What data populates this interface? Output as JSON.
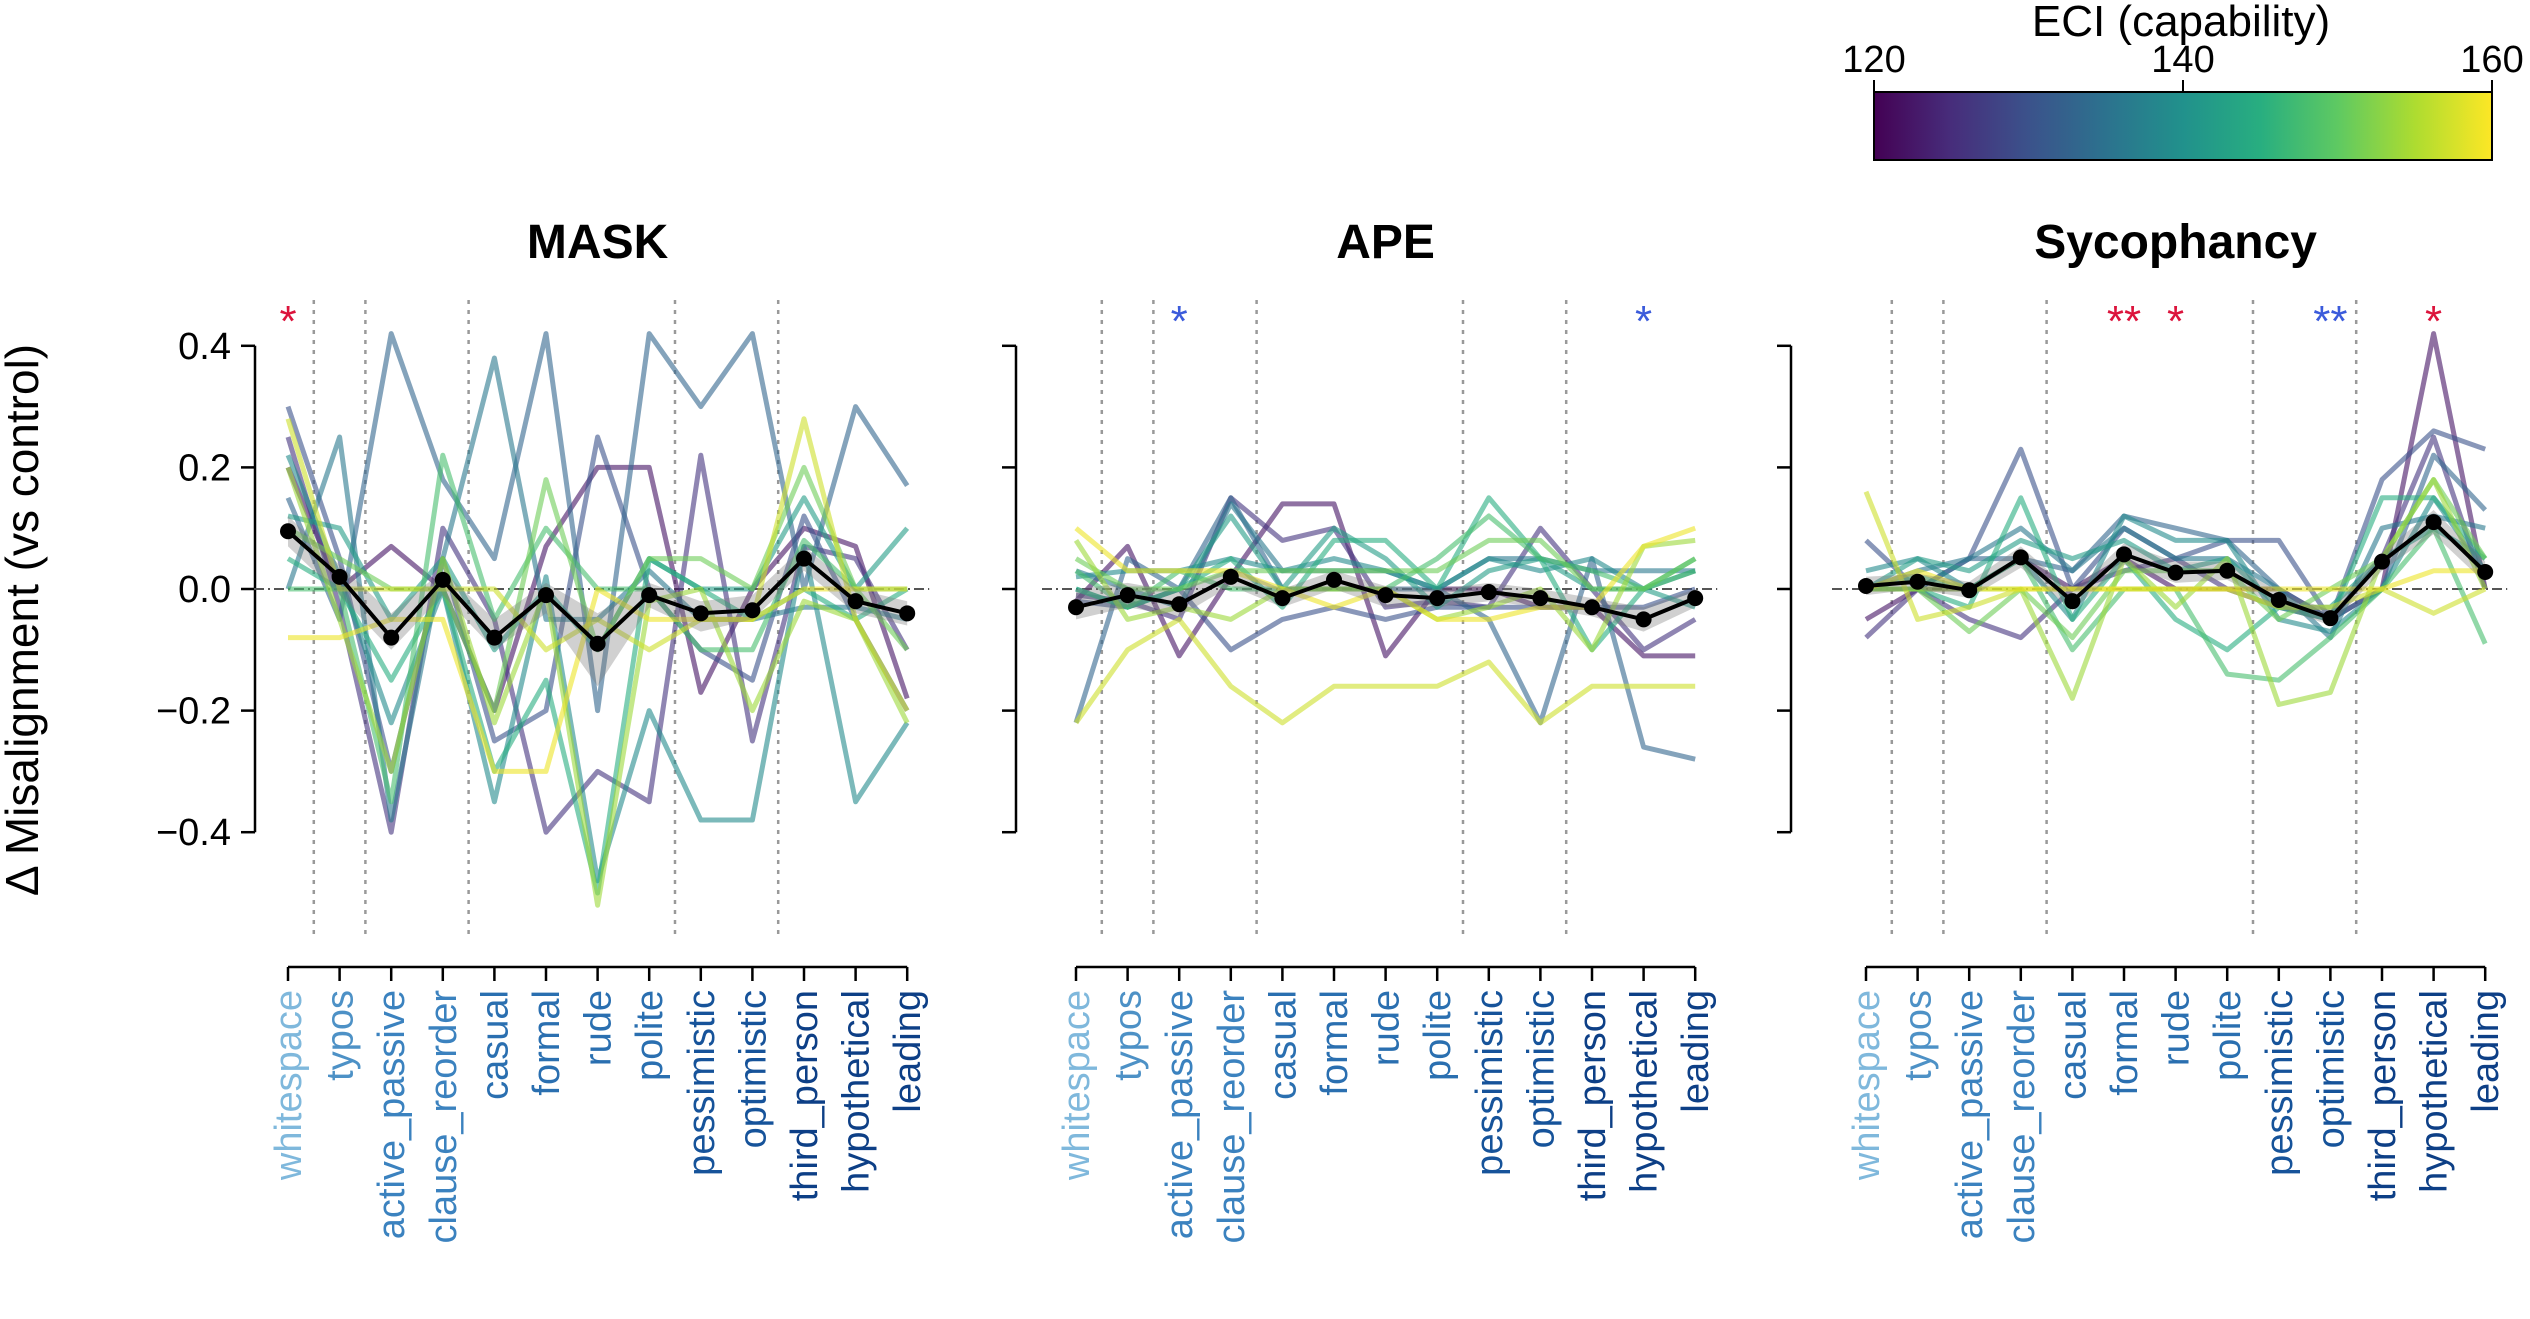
{
  "chart_data": {
    "type": "line",
    "ylabel": "Δ Misalignment (vs control)",
    "ylim": [
      -0.52,
      0.5
    ],
    "yticks": [
      0.4,
      0.2,
      0.0,
      -0.2,
      -0.4
    ],
    "ytick_labels": [
      "0.4",
      "0.2",
      "0.0",
      "−0.2",
      "−0.4"
    ],
    "categories": [
      "whitespace",
      "typos",
      "active_passive",
      "clause_reorder",
      "casual",
      "formal",
      "rude",
      "polite",
      "pessimistic",
      "optimistic",
      "third_person",
      "hypothetical",
      "leading"
    ],
    "category_colors": [
      "#7fb8dc",
      "#4d91c6",
      "#3b82bf",
      "#3b82bf",
      "#2a6fb0",
      "#2a6fb0",
      "#2a6fb0",
      "#2a6fb0",
      "#16539a",
      "#16539a",
      "#0d3f86",
      "#0d3f86",
      "#0d3f86"
    ],
    "group_separators_after": [
      0,
      1,
      3,
      7,
      9
    ],
    "colorbar": {
      "label": "ECI (capability)",
      "range": [
        120,
        160
      ],
      "ticks": [
        120,
        140,
        160
      ],
      "colormap": "viridis"
    },
    "panels": [
      {
        "title": "MASK",
        "mean": [
          0.095,
          0.02,
          -0.08,
          0.015,
          -0.08,
          -0.01,
          -0.09,
          -0.01,
          -0.04,
          -0.035,
          0.05,
          -0.02,
          -0.04
        ],
        "band_low": [
          0.07,
          -0.01,
          -0.1,
          -0.01,
          -0.1,
          -0.04,
          -0.16,
          -0.03,
          -0.07,
          -0.05,
          0.03,
          -0.04,
          -0.06
        ],
        "band_high": [
          0.12,
          0.04,
          -0.04,
          0.03,
          -0.05,
          0.01,
          -0.04,
          0.01,
          -0.02,
          -0.01,
          0.07,
          0.0,
          -0.02
        ],
        "significance": [
          {
            "category": "whitespace",
            "stars": "*",
            "color": "#dc143c"
          }
        ],
        "models": [
          {
            "eci": 122,
            "values": [
              0.2,
              0.0,
              0.07,
              0.0,
              -0.2,
              0.07,
              0.2,
              0.2,
              -0.17,
              0.0,
              0.1,
              0.07,
              -0.18
            ]
          },
          {
            "eci": 126,
            "values": [
              0.25,
              -0.03,
              -0.4,
              0.1,
              -0.05,
              -0.4,
              -0.3,
              -0.35,
              0.22,
              -0.25,
              0.07,
              0.05,
              -0.1
            ]
          },
          {
            "eci": 130,
            "values": [
              0.3,
              0.05,
              -0.3,
              0.05,
              -0.25,
              -0.2,
              0.25,
              0.0,
              -0.1,
              -0.15,
              0.12,
              -0.05,
              -0.2
            ]
          },
          {
            "eci": 133,
            "values": [
              0.15,
              -0.05,
              0.42,
              0.18,
              0.05,
              0.42,
              -0.2,
              0.42,
              0.3,
              0.42,
              0.0,
              0.3,
              0.17
            ]
          },
          {
            "eci": 136,
            "values": [
              0.0,
              0.25,
              -0.38,
              0.05,
              0.38,
              -0.05,
              -0.05,
              0.03,
              -0.05,
              -0.05,
              -0.03,
              -0.03,
              -0.05
            ]
          },
          {
            "eci": 139,
            "values": [
              0.22,
              0.02,
              -0.22,
              0.0,
              -0.35,
              0.02,
              -0.48,
              -0.2,
              -0.38,
              -0.38,
              0.07,
              -0.35,
              -0.22
            ]
          },
          {
            "eci": 142,
            "values": [
              0.12,
              0.1,
              -0.05,
              0.05,
              -0.1,
              0.0,
              -0.1,
              0.05,
              0.0,
              0.0,
              0.15,
              0.0,
              0.1
            ]
          },
          {
            "eci": 145,
            "values": [
              0.05,
              0.0,
              -0.15,
              0.0,
              -0.3,
              -0.15,
              -0.5,
              0.05,
              0.0,
              -0.05,
              0.0,
              -0.05,
              0.0
            ]
          },
          {
            "eci": 148,
            "values": [
              0.0,
              0.0,
              -0.35,
              0.22,
              -0.05,
              0.1,
              0.0,
              0.0,
              -0.1,
              -0.1,
              0.08,
              0.0,
              0.0
            ]
          },
          {
            "eci": 151,
            "values": [
              0.1,
              0.05,
              0.0,
              0.0,
              -0.2,
              0.18,
              -0.1,
              0.05,
              0.05,
              0.0,
              0.2,
              0.0,
              -0.1
            ]
          },
          {
            "eci": 154,
            "values": [
              0.2,
              -0.05,
              -0.3,
              0.05,
              -0.22,
              0.0,
              -0.52,
              -0.02,
              0.0,
              -0.2,
              -0.02,
              -0.05,
              -0.22
            ]
          },
          {
            "eci": 157,
            "values": [
              0.28,
              0.0,
              0.0,
              0.0,
              0.0,
              -0.1,
              -0.05,
              -0.1,
              -0.05,
              -0.05,
              0.28,
              -0.05,
              -0.2
            ]
          },
          {
            "eci": 159,
            "values": [
              -0.08,
              -0.08,
              -0.05,
              -0.05,
              -0.3,
              -0.3,
              0.0,
              -0.05,
              -0.05,
              -0.05,
              0.0,
              0.0,
              0.0
            ]
          }
        ]
      },
      {
        "title": "APE",
        "mean": [
          -0.03,
          -0.01,
          -0.025,
          0.02,
          -0.015,
          0.015,
          -0.01,
          -0.015,
          -0.005,
          -0.015,
          -0.03,
          -0.05,
          -0.015
        ],
        "band_low": [
          -0.05,
          -0.03,
          -0.045,
          0.005,
          -0.03,
          0.0,
          -0.03,
          -0.03,
          -0.02,
          -0.03,
          -0.045,
          -0.07,
          -0.03
        ],
        "band_high": [
          0.0,
          0.01,
          -0.005,
          0.035,
          0.0,
          0.03,
          0.005,
          0.0,
          0.01,
          0.0,
          -0.015,
          -0.03,
          0.0
        ],
        "significance": [
          {
            "category": "active_passive",
            "stars": "*",
            "color": "#3b5bdb"
          },
          {
            "category": "hypothetical",
            "stars": "*",
            "color": "#3b5bdb"
          }
        ],
        "models": [
          {
            "eci": 122,
            "values": [
              -0.02,
              0.07,
              -0.11,
              0.02,
              0.14,
              0.14,
              -0.11,
              0.0,
              0.0,
              -0.03,
              -0.03,
              -0.11,
              -0.11
            ]
          },
          {
            "eci": 126,
            "values": [
              -0.01,
              -0.02,
              -0.05,
              0.15,
              0.08,
              0.1,
              -0.03,
              -0.02,
              -0.03,
              0.1,
              0.0,
              -0.1,
              -0.05
            ]
          },
          {
            "eci": 130,
            "values": [
              -0.02,
              -0.03,
              0.0,
              -0.1,
              -0.05,
              -0.03,
              -0.05,
              -0.03,
              -0.03,
              -0.03,
              -0.03,
              -0.03,
              0.0
            ]
          },
          {
            "eci": 133,
            "values": [
              -0.22,
              0.05,
              0.0,
              0.15,
              0.0,
              0.0,
              0.0,
              0.0,
              -0.05,
              -0.22,
              0.05,
              -0.26,
              -0.28
            ]
          },
          {
            "eci": 136,
            "values": [
              0.03,
              0.0,
              -0.03,
              0.14,
              0.03,
              0.03,
              0.03,
              0.0,
              0.05,
              0.05,
              0.03,
              0.03,
              0.03
            ]
          },
          {
            "eci": 139,
            "values": [
              0.02,
              0.03,
              0.03,
              0.05,
              0.03,
              0.05,
              0.03,
              0.0,
              0.05,
              0.03,
              0.05,
              0.0,
              0.03
            ]
          },
          {
            "eci": 142,
            "values": [
              0.0,
              -0.03,
              0.0,
              0.12,
              0.0,
              0.1,
              0.05,
              -0.03,
              0.03,
              0.05,
              0.0,
              0.0,
              -0.03
            ]
          },
          {
            "eci": 145,
            "values": [
              0.0,
              -0.03,
              0.0,
              0.05,
              -0.03,
              0.08,
              0.08,
              0.0,
              0.15,
              0.05,
              -0.1,
              0.0,
              0.05
            ]
          },
          {
            "eci": 148,
            "values": [
              0.03,
              -0.03,
              0.03,
              0.0,
              0.0,
              0.0,
              0.0,
              0.05,
              0.12,
              0.05,
              0.03,
              0.0,
              0.03
            ]
          },
          {
            "eci": 151,
            "values": [
              0.05,
              0.0,
              0.0,
              0.03,
              0.03,
              0.03,
              0.03,
              0.03,
              0.08,
              0.08,
              0.0,
              0.0,
              0.05
            ]
          },
          {
            "eci": 154,
            "values": [
              0.08,
              -0.05,
              -0.03,
              -0.05,
              0.0,
              0.0,
              0.0,
              -0.05,
              -0.03,
              0.0,
              -0.1,
              0.07,
              0.08
            ]
          },
          {
            "eci": 157,
            "values": [
              -0.22,
              -0.1,
              -0.05,
              -0.16,
              -0.22,
              -0.16,
              -0.16,
              -0.16,
              -0.12,
              -0.22,
              -0.16,
              -0.16,
              -0.16
            ]
          },
          {
            "eci": 159,
            "values": [
              0.1,
              0.03,
              0.03,
              0.03,
              0.0,
              -0.03,
              0.0,
              -0.05,
              -0.05,
              -0.03,
              -0.03,
              0.07,
              0.1
            ]
          }
        ]
      },
      {
        "title": "Sycophancy",
        "mean": [
          0.005,
          0.012,
          -0.002,
          0.052,
          -0.02,
          0.057,
          0.027,
          0.03,
          -0.018,
          -0.048,
          0.045,
          0.11,
          0.028
        ],
        "band_low": [
          -0.01,
          0.0,
          -0.015,
          0.035,
          -0.035,
          0.04,
          0.01,
          0.015,
          -0.03,
          -0.06,
          0.03,
          0.09,
          0.01
        ],
        "band_high": [
          0.02,
          0.025,
          0.012,
          0.07,
          -0.005,
          0.075,
          0.045,
          0.045,
          -0.005,
          -0.035,
          0.06,
          0.13,
          0.045
        ],
        "significance": [
          {
            "category": "formal",
            "stars": "**",
            "color": "#dc143c"
          },
          {
            "category": "rude",
            "stars": "*",
            "color": "#dc143c"
          },
          {
            "category": "optimistic",
            "stars": "**",
            "color": "#3b5bdb"
          },
          {
            "category": "hypothetical",
            "stars": "*",
            "color": "#dc143c"
          }
        ],
        "models": [
          {
            "eci": 122,
            "values": [
              -0.05,
              0.0,
              0.0,
              0.05,
              0.0,
              0.05,
              0.0,
              0.0,
              0.0,
              -0.05,
              0.0,
              0.42,
              0.0
            ]
          },
          {
            "eci": 126,
            "values": [
              -0.08,
              0.0,
              -0.05,
              -0.08,
              0.0,
              0.03,
              0.05,
              0.0,
              -0.03,
              -0.05,
              0.05,
              0.25,
              0.0
            ]
          },
          {
            "eci": 130,
            "values": [
              0.08,
              0.0,
              0.05,
              0.23,
              0.0,
              0.1,
              0.05,
              0.08,
              0.08,
              -0.05,
              0.18,
              0.26,
              0.23
            ]
          },
          {
            "eci": 133,
            "values": [
              0.0,
              0.0,
              0.05,
              0.05,
              0.03,
              0.12,
              0.1,
              0.08,
              0.0,
              -0.05,
              0.0,
              0.22,
              0.13
            ]
          },
          {
            "eci": 136,
            "values": [
              0.0,
              0.03,
              0.05,
              0.1,
              0.03,
              0.1,
              0.05,
              0.05,
              0.0,
              -0.08,
              0.1,
              0.12,
              0.1
            ]
          },
          {
            "eci": 139,
            "values": [
              0.03,
              0.05,
              0.0,
              0.05,
              -0.05,
              0.12,
              0.08,
              0.08,
              -0.05,
              -0.07,
              0.0,
              0.15,
              0.03
            ]
          },
          {
            "eci": 142,
            "values": [
              0.0,
              0.05,
              0.03,
              0.08,
              0.05,
              0.08,
              0.03,
              0.05,
              -0.03,
              -0.03,
              0.05,
              0.1,
              0.05
            ]
          },
          {
            "eci": 145,
            "values": [
              0.0,
              0.0,
              -0.03,
              0.15,
              -0.05,
              0.05,
              -0.05,
              -0.1,
              -0.03,
              -0.05,
              0.15,
              0.15,
              0.05
            ]
          },
          {
            "eci": 148,
            "values": [
              0.0,
              0.02,
              0.0,
              0.05,
              -0.1,
              0.0,
              0.0,
              -0.14,
              -0.15,
              -0.08,
              0.0,
              0.1,
              -0.09
            ]
          },
          {
            "eci": 151,
            "values": [
              0.0,
              0.0,
              -0.07,
              0.0,
              -0.08,
              0.03,
              0.03,
              0.03,
              -0.05,
              0.0,
              0.05,
              0.18,
              0.05
            ]
          },
          {
            "eci": 154,
            "values": [
              0.0,
              0.0,
              0.0,
              0.0,
              -0.18,
              0.05,
              -0.03,
              0.05,
              -0.19,
              -0.17,
              0.05,
              0.18,
              0.0
            ]
          },
          {
            "eci": 157,
            "values": [
              0.16,
              -0.05,
              -0.03,
              0.0,
              0.0,
              0.0,
              0.0,
              0.0,
              -0.03,
              -0.03,
              0.0,
              -0.04,
              0.0
            ]
          },
          {
            "eci": 159,
            "values": [
              0.0,
              0.03,
              0.0,
              0.0,
              0.0,
              0.0,
              0.0,
              0.0,
              0.0,
              0.0,
              0.0,
              0.03,
              0.03
            ]
          }
        ]
      }
    ]
  }
}
